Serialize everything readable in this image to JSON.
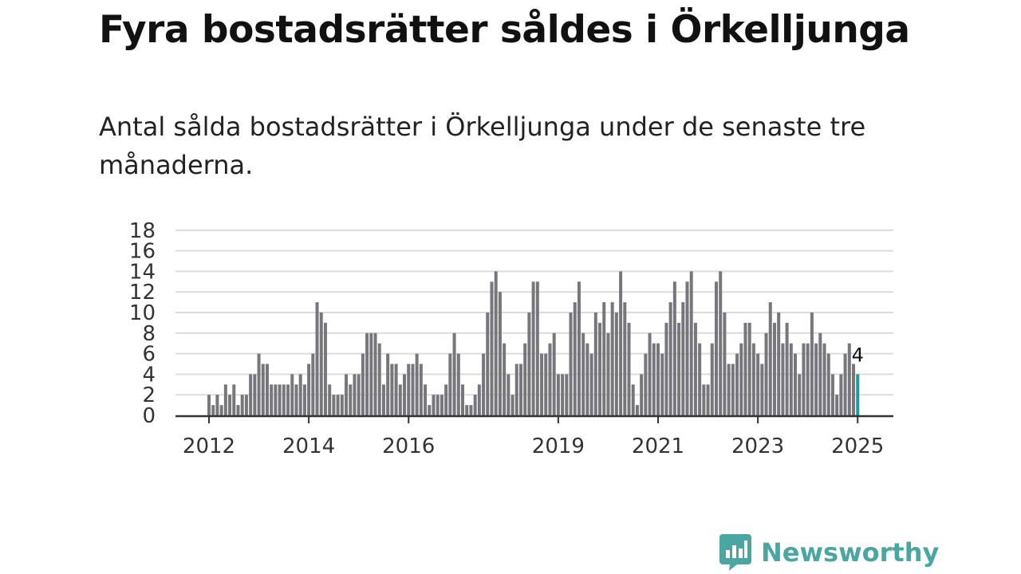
{
  "title": "Fyra bostadsrätter såldes i Örkelljunga",
  "subtitle": "Antal sålda bostadsrätter i Örkelljunga under de senaste tre månaderna.",
  "brand": {
    "name": "Newsworthy",
    "icon": "newsworthy-logo-icon"
  },
  "colors": {
    "bar": "#76767c",
    "highlight": "#1c9c98",
    "grid": "#dcdcdc",
    "axis": "#333333",
    "brand": "#4aa6a0"
  },
  "chart_data": {
    "type": "bar",
    "x_start": "2012-01",
    "x_unit": "month",
    "values": [
      2,
      1,
      2,
      1,
      3,
      2,
      3,
      1,
      2,
      2,
      4,
      4,
      6,
      5,
      5,
      3,
      3,
      3,
      3,
      3,
      4,
      3,
      4,
      3,
      5,
      6,
      11,
      10,
      9,
      3,
      2,
      2,
      2,
      4,
      3,
      4,
      4,
      6,
      8,
      8,
      8,
      7,
      3,
      6,
      5,
      5,
      3,
      4,
      5,
      5,
      6,
      5,
      3,
      1,
      2,
      2,
      2,
      3,
      6,
      8,
      6,
      3,
      1,
      1,
      2,
      3,
      6,
      10,
      13,
      14,
      12,
      7,
      4,
      2,
      5,
      5,
      7,
      10,
      13,
      13,
      6,
      6,
      7,
      8,
      4,
      4,
      4,
      10,
      11,
      13,
      8,
      7,
      6,
      10,
      9,
      11,
      8,
      11,
      10,
      14,
      11,
      9,
      3,
      1,
      4,
      6,
      8,
      7,
      7,
      6,
      9,
      11,
      13,
      9,
      11,
      13,
      14,
      9,
      7,
      3,
      3,
      7,
      13,
      14,
      10,
      5,
      5,
      6,
      7,
      9,
      9,
      7,
      6,
      5,
      8,
      11,
      9,
      10,
      7,
      9,
      7,
      6,
      4,
      7,
      7,
      10,
      7,
      8,
      7,
      6,
      4,
      2,
      4,
      6,
      7,
      5,
      4
    ],
    "highlight_last": true,
    "last_value_label": "4",
    "x_ticks": [
      "2012",
      "2014",
      "2016",
      "2019",
      "2021",
      "2023",
      "2025"
    ],
    "y_ticks": [
      "0",
      "2",
      "4",
      "6",
      "8",
      "10",
      "12",
      "14",
      "16",
      "18"
    ],
    "ylim": [
      0,
      18
    ],
    "grid": true,
    "legend": "none"
  }
}
